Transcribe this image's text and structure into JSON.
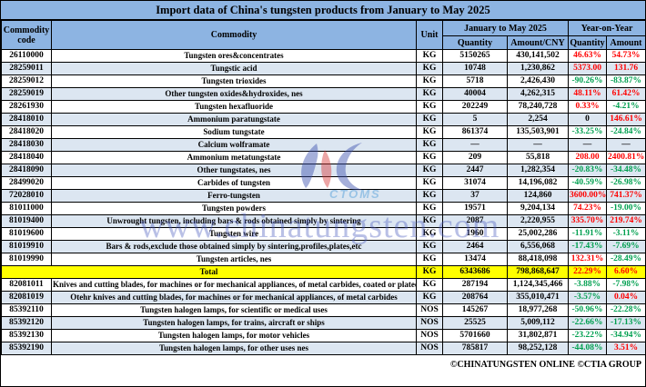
{
  "title": "Import data of China's tungsten products from January to May 2025",
  "colors": {
    "header_bg": "#8db4e2",
    "stripe_bg": "#dce6f1",
    "total_bg": "#ffff00",
    "positive": "#ff0000",
    "negative": "#00a050"
  },
  "header": {
    "col_code": "Commodity code",
    "col_commodity": "Commodity",
    "col_unit": "Unit",
    "group_period": "January to May 2025",
    "group_yoy": "Year-on-Year",
    "col_quantity": "Quantity",
    "col_amount_cny": "Amount/CNY",
    "col_yoy_quantity": "Quantity",
    "col_yoy_amount": "Amount"
  },
  "table": {
    "rows": [
      {
        "code": "26110000",
        "commodity": "Tungsten ores&concentrates",
        "unit": "KG",
        "quantity": "5150265",
        "amount": "430,141,502",
        "yoy_quantity": "46.63%",
        "yoy_amount": "54.73%"
      },
      {
        "code": "28259011",
        "commodity": "Tungstic acid",
        "unit": "KG",
        "quantity": "10748",
        "amount": "1,230,862",
        "yoy_quantity": "5373.00",
        "yoy_amount": "131.76"
      },
      {
        "code": "28259012",
        "commodity": "Tungsten trioxides",
        "unit": "KG",
        "quantity": "5718",
        "amount": "2,426,430",
        "yoy_quantity": "-90.26%",
        "yoy_amount": "-83.87%"
      },
      {
        "code": "28259019",
        "commodity": "Other tungsten oxides&hydroxides, nes",
        "unit": "KG",
        "quantity": "40004",
        "amount": "4,262,315",
        "yoy_quantity": "48.11%",
        "yoy_amount": "61.42%"
      },
      {
        "code": "28261930",
        "commodity": "Tungsten hexafluoride",
        "unit": "KG",
        "quantity": "202249",
        "amount": "78,240,728",
        "yoy_quantity": "0.33%",
        "yoy_amount": "-4.21%"
      },
      {
        "code": "28418010",
        "commodity": "Ammonium paratungstate",
        "unit": "KG",
        "quantity": "5",
        "amount": "2,254",
        "yoy_quantity": "0",
        "yoy_amount": "146.61%"
      },
      {
        "code": "28418020",
        "commodity": "Sodium tungstate",
        "unit": "KG",
        "quantity": "861374",
        "amount": "135,503,901",
        "yoy_quantity": "-33.25%",
        "yoy_amount": "-24.84%"
      },
      {
        "code": "28418030",
        "commodity": "Calcium wolframate",
        "unit": "KG",
        "quantity": "—",
        "amount": "—",
        "yoy_quantity": "—",
        "yoy_amount": "—"
      },
      {
        "code": "28418040",
        "commodity": "Ammonium metatungstate",
        "unit": "KG",
        "quantity": "209",
        "amount": "55,818",
        "yoy_quantity": "208.00",
        "yoy_amount": "2400.81%"
      },
      {
        "code": "28418090",
        "commodity": "Other tungstates, nes",
        "unit": "KG",
        "quantity": "2447",
        "amount": "1,282,354",
        "yoy_quantity": "-20.83%",
        "yoy_amount": "-34.48%"
      },
      {
        "code": "28499020",
        "commodity": "Carbides of tungsten",
        "unit": "KG",
        "quantity": "31074",
        "amount": "14,196,082",
        "yoy_quantity": "-40.59%",
        "yoy_amount": "-26.98%"
      },
      {
        "code": "72028010",
        "commodity": "Ferro-tungsten",
        "unit": "KG",
        "quantity": "37",
        "amount": "124,860",
        "yoy_quantity": "3600.00%",
        "yoy_amount": "741.37%"
      },
      {
        "code": "81011000",
        "commodity": "Tungsten powders",
        "unit": "KG",
        "quantity": "19571",
        "amount": "9,204,134",
        "yoy_quantity": "74.23%",
        "yoy_amount": "-19.00%"
      },
      {
        "code": "81019400",
        "commodity": "Unwrought tungsten, including bars & rods obtained simply by sintering",
        "unit": "KG",
        "quantity": "2087",
        "amount": "2,220,955",
        "yoy_quantity": "335.70%",
        "yoy_amount": "219.74%"
      },
      {
        "code": "81019600",
        "commodity": "Tungsten wire",
        "unit": "KG",
        "quantity": "1960",
        "amount": "25,002,286",
        "yoy_quantity": "-11.91%",
        "yoy_amount": "-3.11%"
      },
      {
        "code": "81019910",
        "commodity": "Bars & rods,exclude those obtained simply by sintering,profiles,plates,etc",
        "unit": "KG",
        "quantity": "2464",
        "amount": "6,556,068",
        "yoy_quantity": "-17.43%",
        "yoy_amount": "-7.69%"
      },
      {
        "code": "81019990",
        "commodity": "Tungsten articles, nes",
        "unit": "KG",
        "quantity": "13474",
        "amount": "88,418,098",
        "yoy_quantity": "132.31%",
        "yoy_amount": "-28.49%"
      },
      {
        "is_total": true,
        "commodity": "Total",
        "unit": "KG",
        "quantity": "6343686",
        "amount": "798,868,647",
        "yoy_quantity": "22.29%",
        "yoy_amount": "6.60%"
      },
      {
        "code": "82081011",
        "commodity": "Knives and cutting blades, for machines or for mechanical appliances, of metal carbides, coated or plated",
        "unit": "KG",
        "quantity": "287194",
        "amount": "1,124,345,466",
        "yoy_quantity": "-3.88%",
        "yoy_amount": "-7.98%"
      },
      {
        "code": "82081019",
        "commodity": "Otehr knives and cutting blades, for machines or for mechanical appliances, of metal carbides",
        "unit": "KG",
        "quantity": "208764",
        "amount": "355,010,471",
        "yoy_quantity": "-3.57%",
        "yoy_amount": "0.04%"
      },
      {
        "code": "85392110",
        "commodity": "Tungsten halogen lamps, for scientific or medical uses",
        "unit": "NOS",
        "quantity": "145267",
        "amount": "18,977,268",
        "yoy_quantity": "-50.96%",
        "yoy_amount": "-22.28%"
      },
      {
        "code": "85392120",
        "commodity": "Tungsten halogen lamps, for trains, aircraft or ships",
        "unit": "NOS",
        "quantity": "25525",
        "amount": "5,009,112",
        "yoy_quantity": "-22.66%",
        "yoy_amount": "-17.13%"
      },
      {
        "code": "85392130",
        "commodity": "Tungsten halogen lamps, for motor vehicles",
        "unit": "NOS",
        "quantity": "5701660",
        "amount": "31,802,871",
        "yoy_quantity": "-23.22%",
        "yoy_amount": "-34.94%"
      },
      {
        "code": "85392190",
        "commodity": "Tungsten halogen lamps, for other uses nes",
        "unit": "NOS",
        "quantity": "785817",
        "amount": "98,252,128",
        "yoy_quantity": "-44.08%",
        "yoy_amount": "3.51%"
      }
    ]
  },
  "watermark": {
    "url_text": "www.chinatungsten.com",
    "logo_text": "CTOMS"
  },
  "footer": {
    "text": "©CHINATUNGSTEN ONLINE  ©CTIA GROUP"
  }
}
